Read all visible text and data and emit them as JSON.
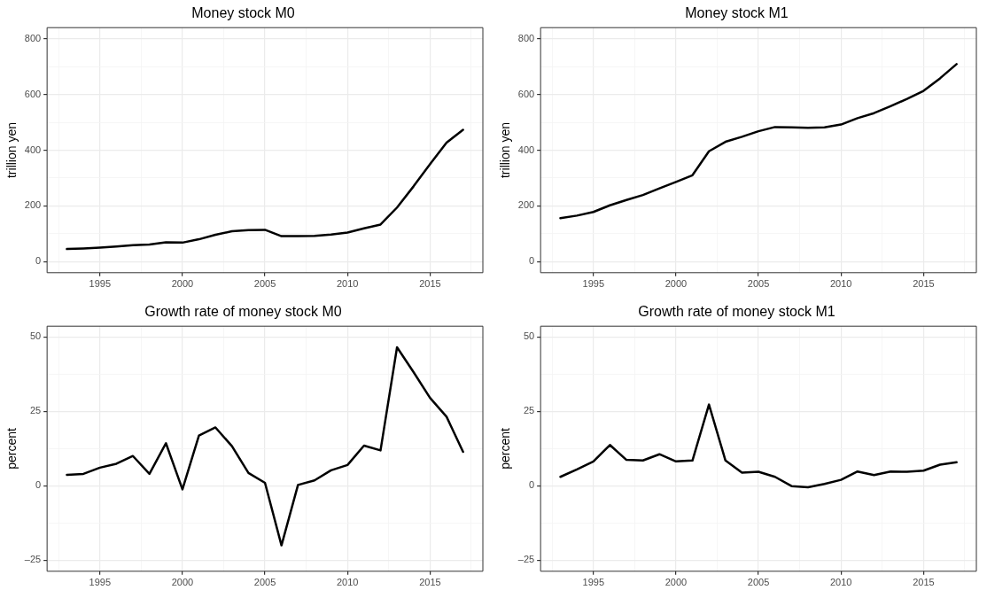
{
  "chart_data": [
    {
      "type": "line",
      "title": "Money stock M0",
      "ylabel": "trillion yen",
      "x": [
        1993,
        1994,
        1995,
        1996,
        1997,
        1998,
        1999,
        2000,
        2001,
        2002,
        2003,
        2004,
        2005,
        2006,
        2007,
        2008,
        2009,
        2010,
        2011,
        2012,
        2013,
        2014,
        2015,
        2016,
        2017
      ],
      "series": [
        {
          "color": "#000000",
          "values": [
            45,
            47,
            50,
            54,
            59,
            61,
            69,
            68,
            80,
            96,
            109,
            113,
            114,
            91,
            91,
            92,
            97,
            104,
            119,
            133,
            194,
            270,
            350,
            427,
            473
          ]
        }
      ],
      "xlim": [
        1991.8,
        2018.2
      ],
      "xticks": [
        {
          "value": 1992.5,
          "label": null
        },
        1995,
        {
          "value": 1997.5,
          "label": null
        },
        2000,
        {
          "value": 2002.5,
          "label": null
        },
        2005,
        {
          "value": 2007.5,
          "label": null
        },
        2010,
        {
          "value": 2012.5,
          "label": null
        },
        2015,
        {
          "value": 2017.5,
          "label": null
        }
      ],
      "ylim": [
        -40,
        840
      ],
      "yticks": [
        0,
        {
          "value": 100,
          "label": null
        },
        200,
        {
          "value": 300,
          "label": null
        },
        400,
        {
          "value": 500,
          "label": null
        },
        600,
        {
          "value": 700,
          "label": null
        },
        800
      ],
      "grid": true,
      "marker": "none",
      "line_style": "solid",
      "legend": false
    },
    {
      "type": "line",
      "title": "Money stock M1",
      "ylabel": "trillion yen",
      "x": [
        1993,
        1994,
        1995,
        1996,
        1997,
        1998,
        1999,
        2000,
        2001,
        2002,
        2003,
        2004,
        2005,
        2006,
        2007,
        2008,
        2009,
        2010,
        2011,
        2012,
        2013,
        2014,
        2015,
        2016,
        2017
      ],
      "series": [
        {
          "color": "#000000",
          "values": [
            156,
            165,
            178,
            202,
            221,
            239,
            263,
            286,
            310,
            396,
            430,
            448,
            468,
            483,
            482,
            480,
            482,
            492,
            515,
            533,
            558,
            584,
            613,
            658,
            709
          ]
        }
      ],
      "xlim": [
        1991.8,
        2018.2
      ],
      "xticks": [
        {
          "value": 1992.5,
          "label": null
        },
        1995,
        {
          "value": 1997.5,
          "label": null
        },
        2000,
        {
          "value": 2002.5,
          "label": null
        },
        2005,
        {
          "value": 2007.5,
          "label": null
        },
        2010,
        {
          "value": 2012.5,
          "label": null
        },
        2015,
        {
          "value": 2017.5,
          "label": null
        }
      ],
      "ylim": [
        -40,
        840
      ],
      "yticks": [
        0,
        {
          "value": 100,
          "label": null
        },
        200,
        {
          "value": 300,
          "label": null
        },
        400,
        {
          "value": 500,
          "label": null
        },
        600,
        {
          "value": 700,
          "label": null
        },
        800
      ],
      "grid": true,
      "marker": "none",
      "line_style": "solid",
      "legend": false
    },
    {
      "type": "line",
      "title": "Growth rate of money stock M0",
      "ylabel": "percent",
      "x": [
        1993,
        1994,
        1995,
        1996,
        1997,
        1998,
        1999,
        2000,
        2001,
        2002,
        2003,
        2004,
        2005,
        2006,
        2007,
        2008,
        2009,
        2010,
        2011,
        2012,
        2013,
        2014,
        2015,
        2016,
        2017
      ],
      "series": [
        {
          "color": "#000000",
          "values": [
            3.7,
            4.0,
            6.1,
            7.4,
            10.0,
            4.0,
            14.3,
            -1.2,
            16.9,
            19.6,
            13.3,
            4.3,
            1.0,
            -20.0,
            0.3,
            1.8,
            5.2,
            7.0,
            13.5,
            11.9,
            46.5,
            38.2,
            29.5,
            23.2,
            11.4
          ]
        }
      ],
      "xlim": [
        1991.8,
        2018.2
      ],
      "xticks": [
        {
          "value": 1992.5,
          "label": null
        },
        1995,
        {
          "value": 1997.5,
          "label": null
        },
        2000,
        {
          "value": 2002.5,
          "label": null
        },
        2005,
        {
          "value": 2007.5,
          "label": null
        },
        2010,
        {
          "value": 2012.5,
          "label": null
        },
        2015,
        {
          "value": 2017.5,
          "label": null
        }
      ],
      "ylim": [
        -28.7,
        53.6
      ],
      "yticks": [
        {
          "value": -25,
          "label": "–25"
        },
        {
          "value": -12.5,
          "label": null
        },
        0,
        {
          "value": 12.5,
          "label": null
        },
        25,
        {
          "value": 37.5,
          "label": null
        },
        50
      ],
      "grid": true,
      "marker": "none",
      "line_style": "solid",
      "legend": false
    },
    {
      "type": "line",
      "title": "Growth rate of money stock M1",
      "ylabel": "percent",
      "x": [
        1993,
        1994,
        1995,
        1996,
        1997,
        1998,
        1999,
        2000,
        2001,
        2002,
        2003,
        2004,
        2005,
        2006,
        2007,
        2008,
        2009,
        2010,
        2011,
        2012,
        2013,
        2014,
        2015,
        2016,
        2017
      ],
      "series": [
        {
          "color": "#000000",
          "values": [
            3.0,
            5.5,
            8.2,
            13.7,
            8.7,
            8.5,
            10.6,
            8.2,
            8.5,
            27.3,
            8.5,
            4.4,
            4.7,
            3.0,
            -0.1,
            -0.5,
            0.6,
            2.0,
            4.8,
            3.6,
            4.8,
            4.7,
            5.1,
            7.1,
            7.9
          ]
        }
      ],
      "xlim": [
        1991.8,
        2018.2
      ],
      "xticks": [
        {
          "value": 1992.5,
          "label": null
        },
        1995,
        {
          "value": 1997.5,
          "label": null
        },
        2000,
        {
          "value": 2002.5,
          "label": null
        },
        2005,
        {
          "value": 2007.5,
          "label": null
        },
        2010,
        {
          "value": 2012.5,
          "label": null
        },
        2015,
        {
          "value": 2017.5,
          "label": null
        }
      ],
      "ylim": [
        -28.7,
        53.6
      ],
      "yticks": [
        {
          "value": -25,
          "label": "–25"
        },
        {
          "value": -12.5,
          "label": null
        },
        0,
        {
          "value": 12.5,
          "label": null
        },
        25,
        {
          "value": 37.5,
          "label": null
        },
        50
      ],
      "grid": true,
      "marker": "none",
      "line_style": "solid",
      "legend": false
    }
  ]
}
